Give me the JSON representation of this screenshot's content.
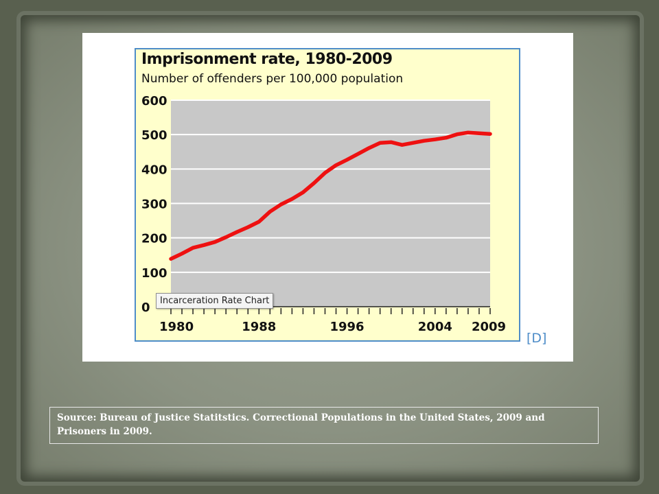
{
  "chart_data": {
    "type": "line",
    "title": "Imprisonment rate, 1980-2009",
    "subtitle": "Number of offenders per 100,000 population",
    "xlabel": "",
    "ylabel": "",
    "xlim": [
      1980,
      2009
    ],
    "ylim": [
      0,
      600
    ],
    "y_ticks": [
      0,
      100,
      200,
      300,
      400,
      500,
      600
    ],
    "x_tick_labels": [
      "1980",
      "1988",
      "1996",
      "2004",
      "2009"
    ],
    "grid": true,
    "line_color": "#ee1111",
    "series": [
      {
        "x": [
          1980,
          1981,
          1982,
          1983,
          1984,
          1985,
          1986,
          1987,
          1988,
          1989,
          1990,
          1991,
          1992,
          1993,
          1994,
          1995,
          1996,
          1997,
          1998,
          1999,
          2000,
          2001,
          2002,
          2003,
          2004,
          2005,
          2006,
          2007,
          2008,
          2009
        ],
        "y": [
          139,
          154,
          171,
          179,
          188,
          202,
          217,
          231,
          247,
          276,
          297,
          313,
          332,
          359,
          389,
          411,
          427,
          444,
          461,
          476,
          478,
          470,
          476,
          482,
          486,
          491,
          501,
          506,
          504,
          502
        ]
      }
    ]
  },
  "tooltip_label": "Incarceration Rate Chart",
  "ref_link": "[D]",
  "caption": "Source: Bureau of Justice Statitstics. Correctional Populations in the United States, 2009 and Prisoners in 2009."
}
